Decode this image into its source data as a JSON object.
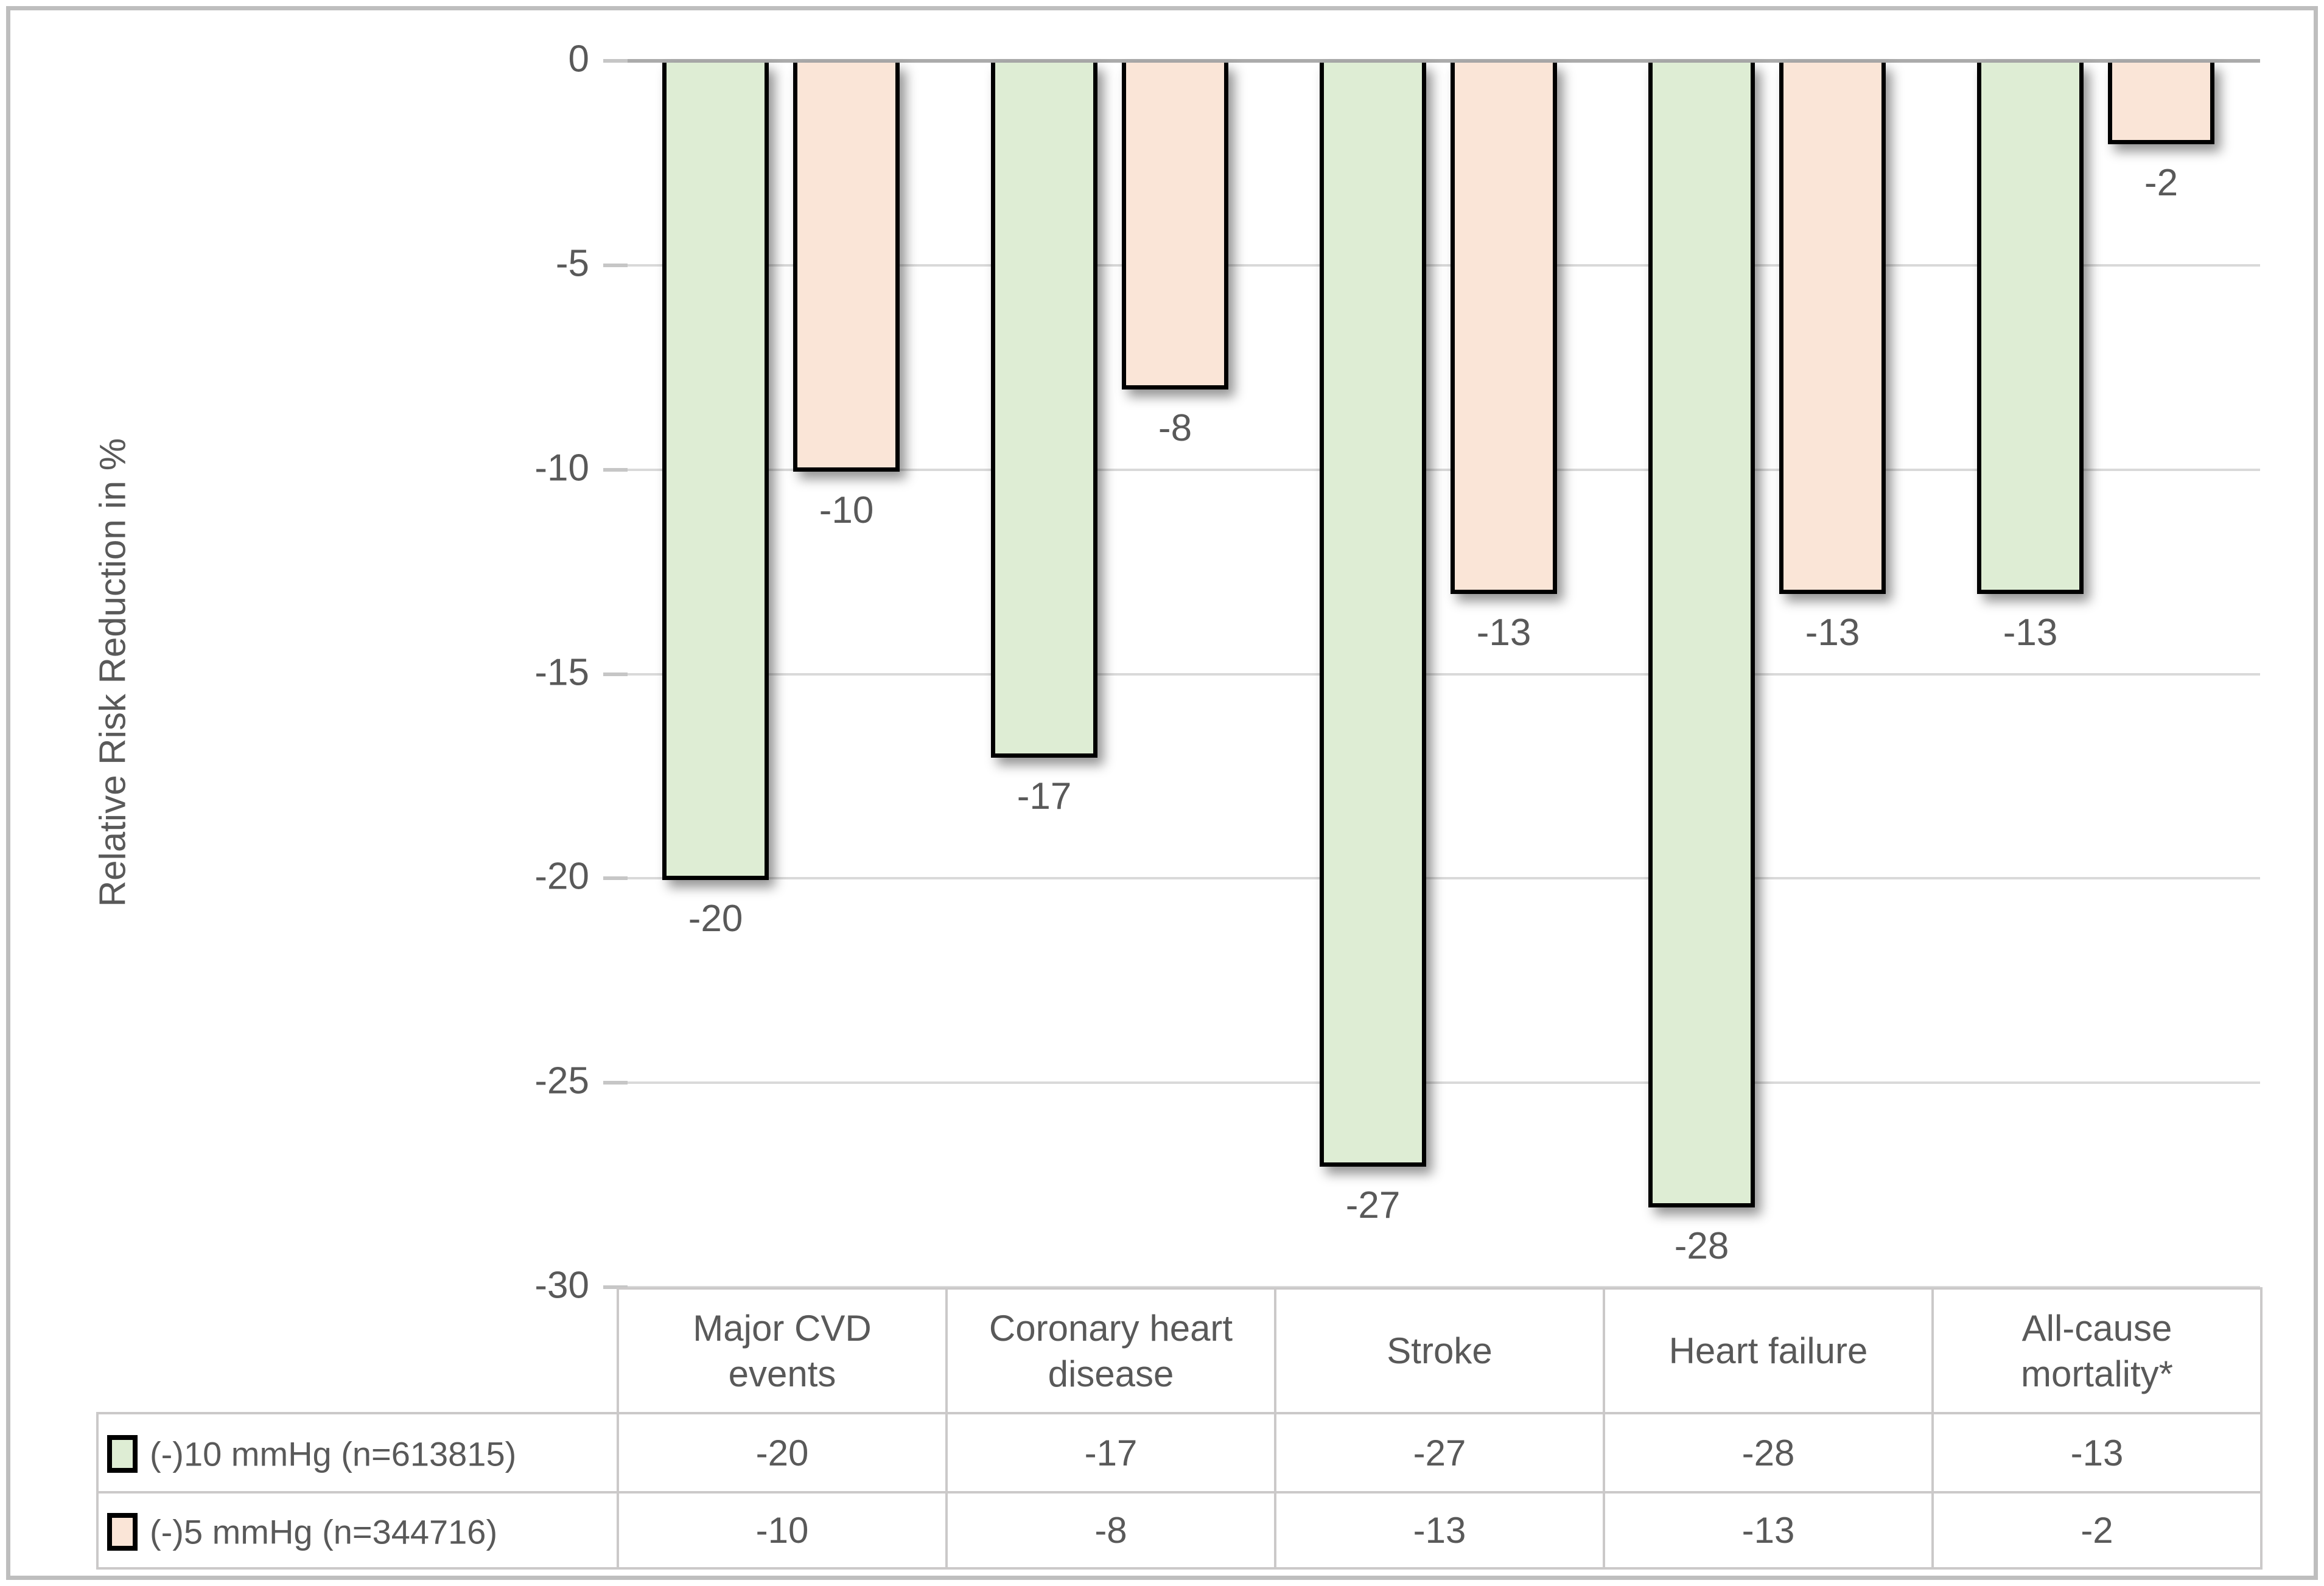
{
  "chart_data": {
    "type": "bar",
    "title": "",
    "xlabel": "",
    "ylabel": "Relative Risk Reduction in %",
    "ylim": [
      -30,
      0
    ],
    "yticks": [
      0,
      -5,
      -10,
      -15,
      -20,
      -25,
      -30
    ],
    "ytick_labels": [
      "0",
      "-5",
      "-10",
      "-15",
      "-20",
      "-25",
      "-30"
    ],
    "grid": true,
    "bar_orientation": "vertical-negative",
    "legend_position": "data-table-left-column",
    "categories": [
      "Major CVD events",
      "Coronary heart disease",
      "Stroke",
      "Heart failure",
      "All-cause mortality*"
    ],
    "series": [
      {
        "name": "(-)10 mmHg (n=613815)",
        "color": "#DEEDD4",
        "border_color": "#000000",
        "values": [
          -20,
          -17,
          -27,
          -28,
          -13
        ]
      },
      {
        "name": "(-)5 mmHg (n=344716)",
        "color": "#FAE5D7",
        "border_color": "#000000",
        "values": [
          -10,
          -8,
          -13,
          -13,
          -2
        ]
      }
    ],
    "data_labels_shown": true,
    "data_table_shown": true
  },
  "colors": {
    "text": "#595959",
    "gridline": "#D9D9D9",
    "zero_line": "#ABABAB",
    "tick_mark": "#C6C6C6",
    "table_border": "#CBC9C9",
    "frame_border": "#BEBEBE",
    "background": "#FFFFFF"
  }
}
